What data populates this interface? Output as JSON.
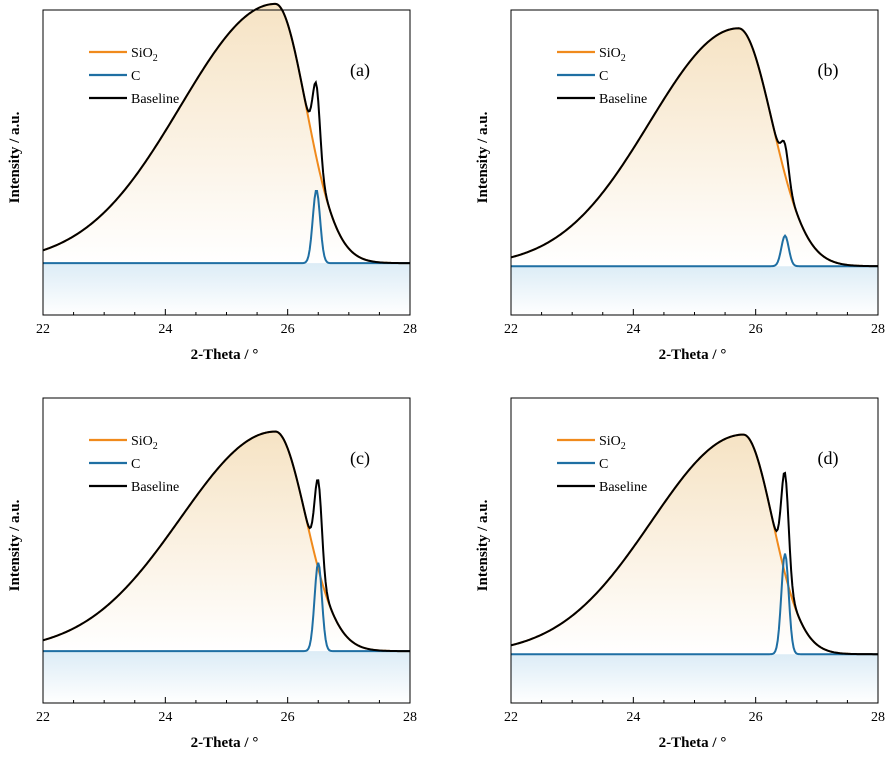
{
  "panels": [
    {
      "label": "(a)",
      "xlabel": "2-Theta / °",
      "ylabel": "Intensity / a.u.",
      "legend": [
        "SiO",
        "C",
        "Baseline"
      ]
    },
    {
      "label": "(b)",
      "xlabel": "2-Theta / °",
      "ylabel": "Intensity / a.u.",
      "legend": [
        "SiO",
        "C",
        "Baseline"
      ]
    },
    {
      "label": "(c)",
      "xlabel": "2-Theta / °",
      "ylabel": "Intensity / a.u.",
      "legend": [
        "SiO",
        "C",
        "Baseline"
      ]
    },
    {
      "label": "(d)",
      "xlabel": "2-Theta / °",
      "ylabel": "Intensity / a.u.",
      "legend": [
        "SiO",
        "C",
        "Baseline"
      ]
    }
  ],
  "legend_subscript": "2",
  "colors": {
    "sio2": "#f08a1c",
    "c": "#1f6fa3",
    "baseline": "#000000",
    "fill_sio2": "#f6e3c4",
    "fill_c": "#dcecf6"
  },
  "chart_data": [
    {
      "type": "line",
      "xlim": [
        22,
        28
      ],
      "xticks": [
        22,
        24,
        26,
        28
      ],
      "ylim": [
        0,
        1
      ],
      "series": [
        {
          "name": "SiO2",
          "center": 25.8,
          "height": 0.85,
          "width_left": 1.55,
          "width_right": 0.5
        },
        {
          "name": "C",
          "center": 26.47,
          "height": 0.24,
          "width": 0.06
        },
        {
          "name": "Baseline",
          "offset": 0.17
        }
      ]
    },
    {
      "type": "line",
      "xlim": [
        22,
        28
      ],
      "xticks": [
        22,
        24,
        26,
        28
      ],
      "ylim": [
        0,
        1
      ],
      "series": [
        {
          "name": "SiO2",
          "center": 25.72,
          "height": 0.78,
          "width_left": 1.45,
          "width_right": 0.55
        },
        {
          "name": "C",
          "center": 26.48,
          "height": 0.1,
          "width": 0.06
        },
        {
          "name": "Baseline",
          "offset": 0.16
        }
      ]
    },
    {
      "type": "line",
      "xlim": [
        22,
        28
      ],
      "xticks": [
        22,
        24,
        26,
        28
      ],
      "ylim": [
        0,
        1
      ],
      "series": [
        {
          "name": "SiO2",
          "center": 25.8,
          "height": 0.72,
          "width_left": 1.55,
          "width_right": 0.5
        },
        {
          "name": "C",
          "center": 26.5,
          "height": 0.29,
          "width": 0.06
        },
        {
          "name": "Baseline",
          "offset": 0.17
        }
      ]
    },
    {
      "type": "line",
      "xlim": [
        22,
        28
      ],
      "xticks": [
        22,
        24,
        26,
        28
      ],
      "ylim": [
        0,
        1
      ],
      "series": [
        {
          "name": "SiO2",
          "center": 25.8,
          "height": 0.72,
          "width_left": 1.5,
          "width_right": 0.48
        },
        {
          "name": "C",
          "center": 26.48,
          "height": 0.33,
          "width": 0.06
        },
        {
          "name": "Baseline",
          "offset": 0.16
        }
      ]
    }
  ]
}
